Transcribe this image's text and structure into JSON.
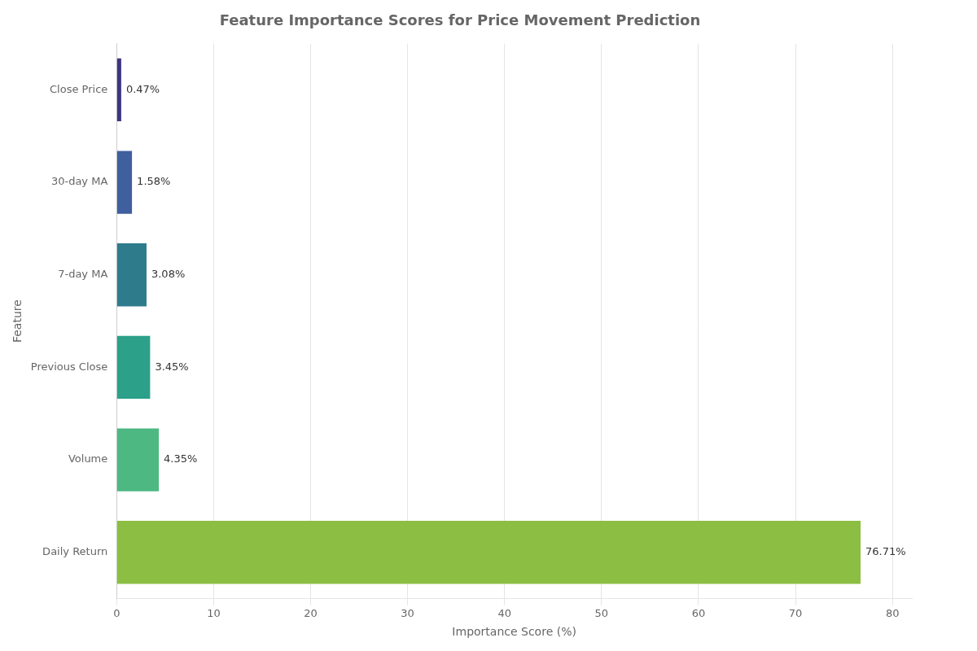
{
  "chart_data": {
    "type": "bar",
    "orientation": "horizontal",
    "title": "Feature Importance Scores for Price Movement Prediction",
    "xlabel": "Importance Score (%)",
    "ylabel": "Feature",
    "categories": [
      "Daily Return",
      "Volume",
      "Previous Close",
      "7-day MA",
      "30-day MA",
      "Close Price"
    ],
    "values": [
      76.71,
      4.35,
      3.45,
      3.08,
      1.58,
      0.47
    ],
    "value_labels": [
      "76.71%",
      "4.35%",
      "3.45%",
      "3.08%",
      "1.58%",
      "0.47%"
    ],
    "data_labels": true,
    "colors": [
      "#8bbe42",
      "#4db882",
      "#2ca089",
      "#2e7b8c",
      "#3f5f9e",
      "#3d3580"
    ],
    "xlim": [
      0,
      82
    ],
    "xticks": [
      0,
      10,
      20,
      30,
      40,
      50,
      60,
      70,
      80
    ],
    "grid": true
  }
}
